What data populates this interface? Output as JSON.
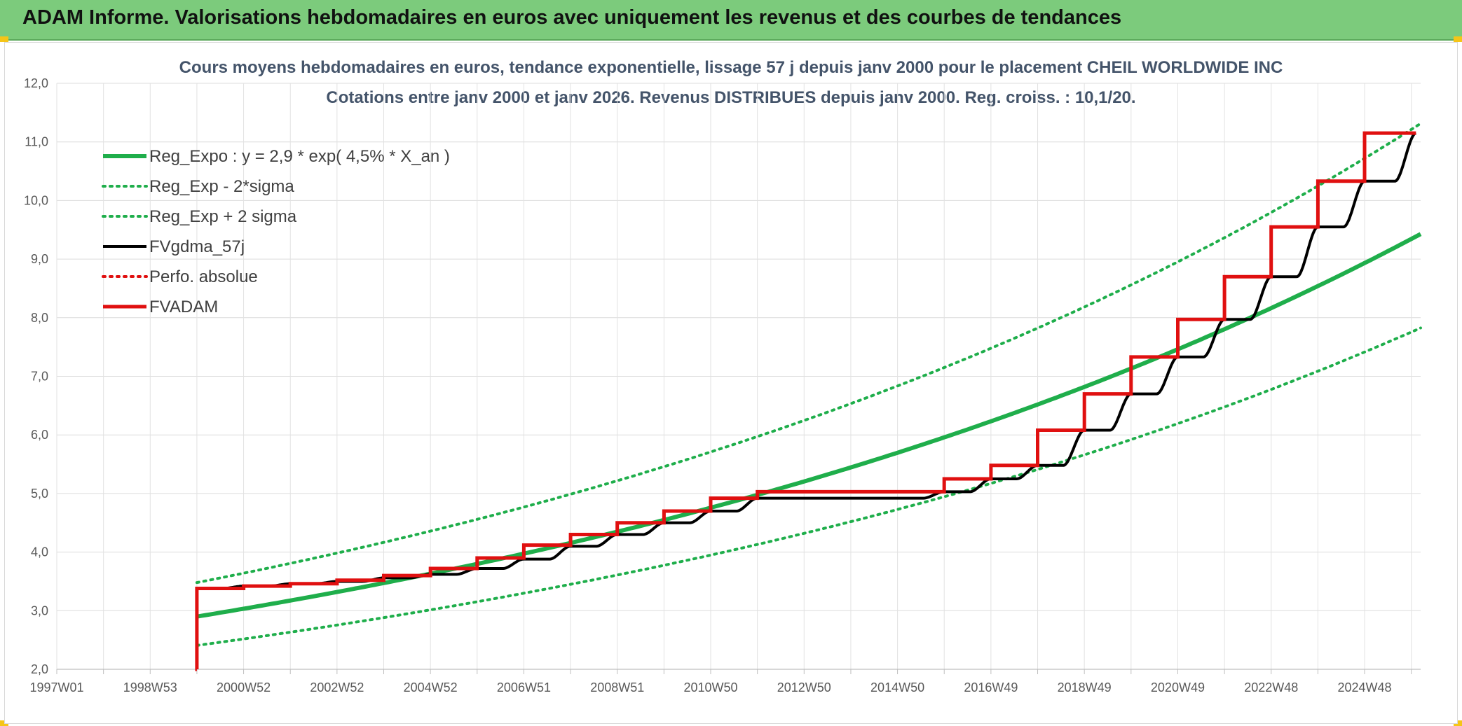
{
  "header": {
    "title": "ADAM Informe. Valorisations hebdomadaires en euros avec uniquement les revenus et des courbes de tendances"
  },
  "colors": {
    "header_bg": "#7ccb7c",
    "trend": "#1fae4b",
    "band": "#1fae4b",
    "fvgdma": "#000000",
    "perfo": "#e01010",
    "fvadam": "#e01010"
  },
  "chart_data": {
    "type": "line",
    "title": "Cours moyens hebdomadaires en euros, tendance exponentielle, lissage 57 j depuis janv 2000 pour le placement CHEIL WORLDWIDE INC",
    "subtitle": "Cotations entre janv 2000 et janv 2026. Revenus DISTRIBUES depuis janv 2000. Reg. croiss. : 10,1/20.",
    "xlabel": "",
    "ylabel": "",
    "xlim": [
      1997.0,
      2026.2
    ],
    "ylim": [
      2.0,
      12.0
    ],
    "grid": true,
    "legend_position": "top-left",
    "x_ticks": [
      {
        "x": 1997.0,
        "label": "1997W01"
      },
      {
        "x": 1999.0,
        "label": "1998W53"
      },
      {
        "x": 2001.0,
        "label": "2000W52"
      },
      {
        "x": 2003.0,
        "label": "2002W52"
      },
      {
        "x": 2005.0,
        "label": "2004W52"
      },
      {
        "x": 2007.0,
        "label": "2006W51"
      },
      {
        "x": 2009.0,
        "label": "2008W51"
      },
      {
        "x": 2011.0,
        "label": "2010W50"
      },
      {
        "x": 2013.0,
        "label": "2012W50"
      },
      {
        "x": 2015.0,
        "label": "2014W50"
      },
      {
        "x": 2017.0,
        "label": "2016W49"
      },
      {
        "x": 2019.0,
        "label": "2018W49"
      },
      {
        "x": 2021.0,
        "label": "2020W49"
      },
      {
        "x": 2023.0,
        "label": "2022W48"
      },
      {
        "x": 2025.0,
        "label": "2024W48"
      }
    ],
    "y_ticks": [
      "2,0",
      "3,0",
      "4,0",
      "5,0",
      "6,0",
      "7,0",
      "8,0",
      "9,0",
      "10,0",
      "11,0",
      "12,0"
    ],
    "x_minor_ticks": [
      1998.0,
      2000.0,
      2002.0,
      2004.0,
      2006.0,
      2008.0,
      2010.0,
      2012.0,
      2014.0,
      2016.0,
      2018.0,
      2020.0,
      2022.0,
      2024.0,
      2026.0
    ],
    "regression": {
      "a": 2.9,
      "rate": 0.045,
      "x0": 2000.0,
      "sigma_lower_factor": 0.83,
      "sigma_upper_factor": 1.2
    },
    "series": [
      {
        "name": "Reg_Expo : y = 2,9 * exp( 4,5% *  X_an )",
        "style": "solid-thick",
        "color": "#1fae4b",
        "x": [
          2000.0,
          2002.0,
          2004.0,
          2006.0,
          2008.0,
          2010.0,
          2012.0,
          2014.0,
          2016.0,
          2018.0,
          2020.0,
          2022.0,
          2024.0,
          2026.0
        ],
        "values": [
          2.95,
          3.2,
          3.5,
          3.82,
          4.16,
          4.54,
          4.96,
          5.42,
          5.92,
          6.48,
          7.08,
          7.74,
          8.46,
          9.5
        ]
      },
      {
        "name": "Reg_Exp - 2*sigma",
        "style": "dotted",
        "color": "#1fae4b",
        "x": [
          2000.0,
          2002.0,
          2004.0,
          2006.0,
          2008.0,
          2010.0,
          2012.0,
          2014.0,
          2016.0,
          2018.0,
          2020.0,
          2022.0,
          2024.0,
          2026.0
        ],
        "values": [
          2.45,
          2.66,
          2.9,
          3.17,
          3.46,
          3.77,
          4.12,
          4.5,
          4.92,
          5.38,
          5.88,
          6.43,
          7.02,
          7.88
        ]
      },
      {
        "name": "Reg_Exp + 2 sigma",
        "style": "dotted",
        "color": "#1fae4b",
        "x": [
          2000.0,
          2002.0,
          2004.0,
          2006.0,
          2008.0,
          2010.0,
          2012.0,
          2014.0,
          2016.0,
          2018.0,
          2020.0,
          2022.0,
          2024.0,
          2026.0
        ],
        "values": [
          3.55,
          3.85,
          4.2,
          4.58,
          5.0,
          5.45,
          5.95,
          6.5,
          7.1,
          7.78,
          8.5,
          9.3,
          10.15,
          11.42
        ]
      },
      {
        "name": "FVgdma_57j",
        "style": "solid-smooth",
        "color": "#000000",
        "x": [
          2000.0,
          2001.0,
          2002.0,
          2003.0,
          2004.0,
          2005.0,
          2006.0,
          2007.0,
          2008.0,
          2009.0,
          2010.0,
          2011.0,
          2012.0,
          2016.0,
          2017.0,
          2018.0,
          2019.0,
          2020.0,
          2021.0,
          2022.0,
          2023.0,
          2024.0,
          2025.0,
          2026.1
        ],
        "values": [
          3.38,
          3.42,
          3.46,
          3.5,
          3.56,
          3.62,
          3.72,
          3.88,
          4.1,
          4.3,
          4.5,
          4.7,
          4.92,
          5.03,
          5.25,
          5.48,
          6.08,
          6.7,
          7.33,
          7.97,
          8.7,
          9.55,
          10.33,
          11.15
        ]
      },
      {
        "name": "Perfo. absolue",
        "style": "dotted",
        "color": "#e01010",
        "x": [],
        "values": []
      },
      {
        "name": "FVADAM",
        "style": "step-thick",
        "color": "#e01010",
        "x": [
          2000.0,
          2000.0,
          2001.0,
          2002.0,
          2003.0,
          2004.0,
          2005.0,
          2006.0,
          2007.0,
          2008.0,
          2009.0,
          2010.0,
          2011.0,
          2012.0,
          2016.0,
          2017.0,
          2018.0,
          2019.0,
          2020.0,
          2021.0,
          2022.0,
          2023.0,
          2024.0,
          2025.0,
          2026.1
        ],
        "values": [
          2.0,
          3.38,
          3.42,
          3.46,
          3.52,
          3.6,
          3.72,
          3.9,
          4.12,
          4.3,
          4.5,
          4.7,
          4.92,
          5.03,
          5.25,
          5.48,
          6.08,
          6.7,
          7.33,
          7.97,
          8.7,
          9.55,
          10.33,
          11.15,
          11.15
        ]
      }
    ]
  }
}
